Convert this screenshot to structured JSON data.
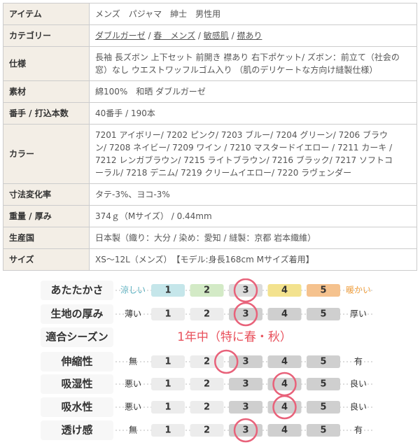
{
  "spec_table": {
    "rows": [
      {
        "label": "アイテム",
        "lines": [
          "メンズ　パジャマ　紳士　男性用"
        ]
      },
      {
        "label": "カテゴリー",
        "links": [
          "ダブルガーゼ",
          "春　メンズ",
          "敏感肌",
          "襟あり"
        ]
      },
      {
        "label": "仕様",
        "lines": [
          "長袖 長ズボン 上下セット 前開き 襟あり 右下ポケット/ ズボン：前立て（社会の",
          "窓）なし ウエストワッフルゴム入り （肌のデリケートな方向け縫製仕様）"
        ]
      },
      {
        "label": "素材",
        "lines": [
          "綿100%　和晒 ダブルガーゼ"
        ]
      },
      {
        "label": "番手 / 打込本数",
        "lines": [
          "40番手 / 190本"
        ]
      },
      {
        "label": "カラー",
        "lines": [
          "7201 アイボリー/ 7202 ピンク/ 7203 ブルー/ 7204 グリーン/ 7206 ブラウ",
          "ン/ 7208 ネイビー/ 7209 ワイン / 7210 マスタードイエロー / 7211 カーキ /",
          "7212 レンガブラウン/ 7215 ライトブラウン/ 7216 ブラック/ 7217 ソフトコ",
          "ーラル/ 7218 デニム/ 7219 クリームイエロー/ 7220 ラヴェンダー"
        ]
      },
      {
        "label": "寸法変化率",
        "lines": [
          "タテ-3%、ヨコ-3%"
        ]
      },
      {
        "label": "重量 / 厚み",
        "lines": [
          "374ｇ（Mサイズ） / 0.44mm"
        ]
      },
      {
        "label": "生産国",
        "lines": [
          "日本製（織り：大分 / 染め：愛知 / 縫製：京都 岩本織維）"
        ]
      },
      {
        "label": "サイズ",
        "lines": [
          "XS～12L（メンズ）　【モデル:身長168cm Mサイズ着用】"
        ]
      }
    ]
  },
  "ratings": {
    "scale": [
      "1",
      "2",
      "3",
      "4",
      "5"
    ],
    "rows": [
      {
        "label": "あたたかさ",
        "low": "涼しい",
        "high": "暖かい",
        "selected": 3
      },
      {
        "label": "生地の厚み",
        "low": "薄い",
        "high": "厚い",
        "selected": 3
      },
      {
        "label": "適合シーズン",
        "text": "1年中（特に春・秋）"
      },
      {
        "label": "伸縮性",
        "low": "無",
        "high": "有",
        "selected": 2.5
      },
      {
        "label": "吸湿性",
        "low": "悪い",
        "high": "良い",
        "selected": 4
      },
      {
        "label": "吸水性",
        "low": "悪い",
        "high": "良い",
        "selected": 4
      },
      {
        "label": "透け感",
        "low": "無",
        "high": "有",
        "selected": 3
      }
    ]
  }
}
